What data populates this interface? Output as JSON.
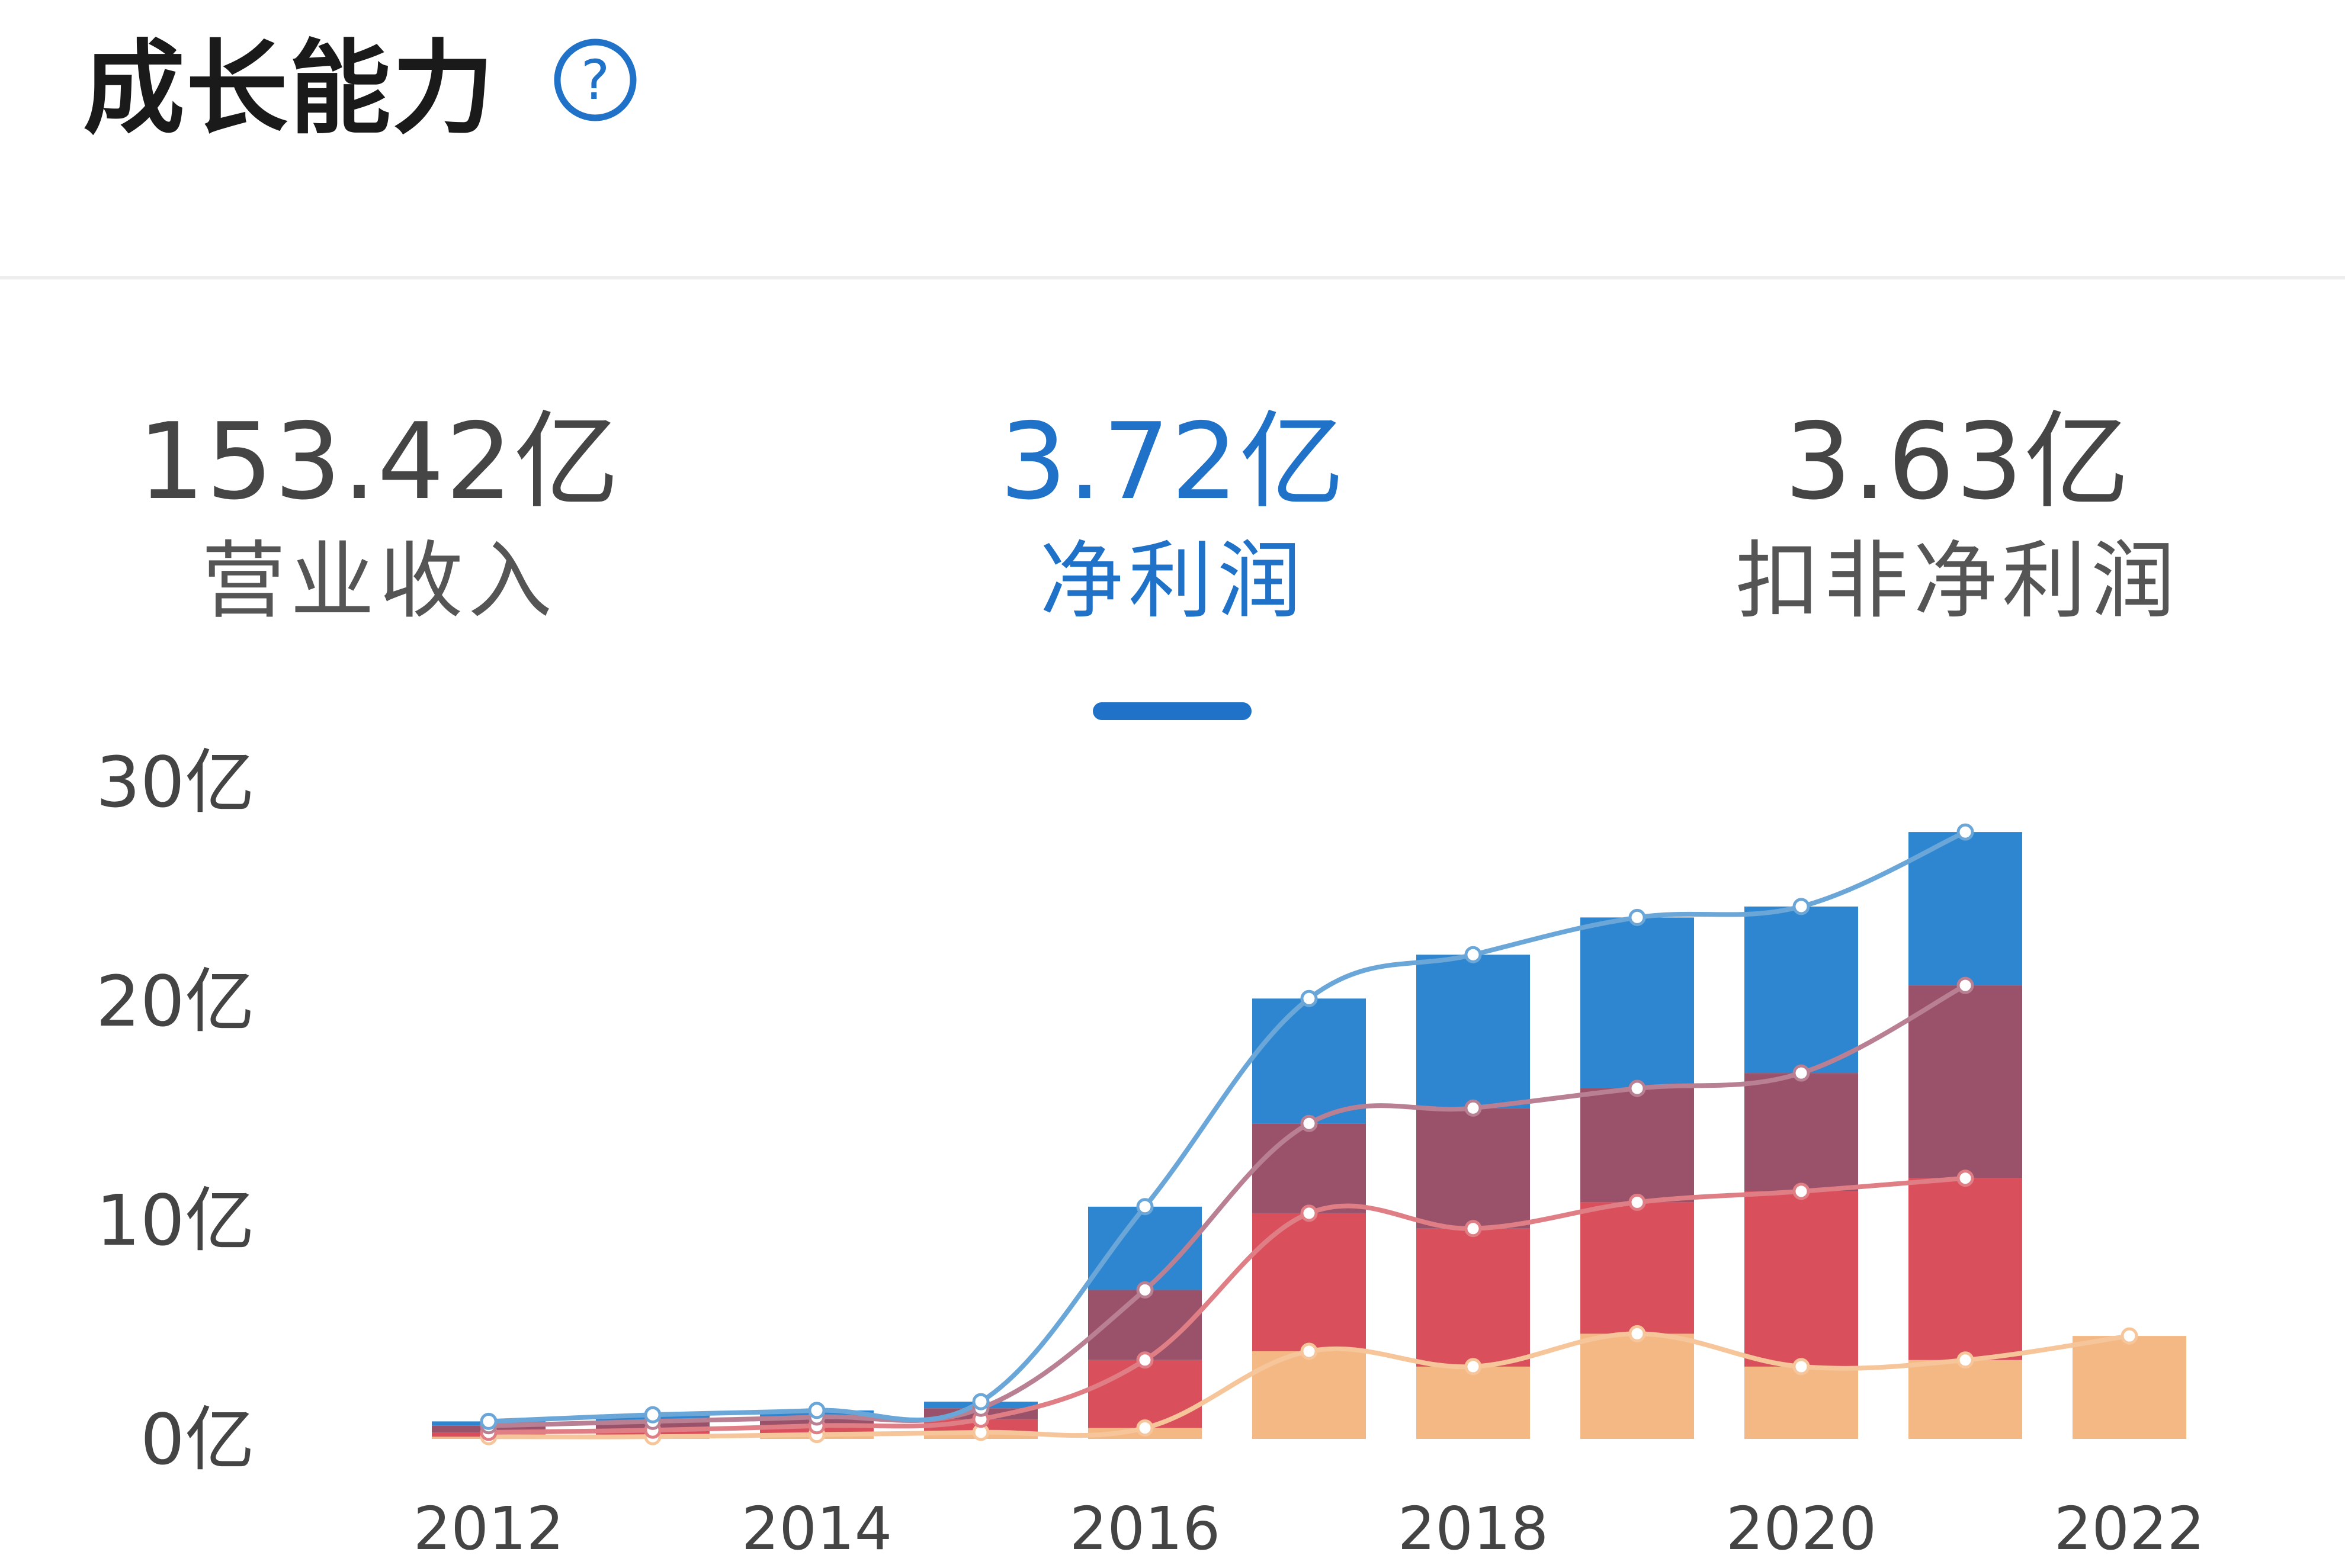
{
  "header": {
    "title": "成长能力",
    "help_icon": "help-circle-icon",
    "help_symbol": "?"
  },
  "metrics": [
    {
      "value": "153.42亿",
      "label": "营业收入",
      "active": false
    },
    {
      "value": "3.72亿",
      "label": "净利润",
      "active": true
    },
    {
      "value": "3.63亿",
      "label": "扣非净利润",
      "active": false
    }
  ],
  "colors": {
    "accent": "#1f72c8",
    "q1": "#f4b884",
    "q2": "#d94f5c",
    "q3": "#99526a",
    "q4": "#2d86cf",
    "line_q1": "#f6c59a",
    "line_q2": "#e07e86",
    "line_q3": "#b97f92",
    "line_q4": "#6aa7d8"
  },
  "chart_data": {
    "type": "bar",
    "stacked": true,
    "title": "",
    "xlabel": "",
    "ylabel": "",
    "ylim": [
      0,
      30
    ],
    "unit": "亿",
    "y_ticks": [
      "0亿",
      "10亿",
      "20亿",
      "30亿"
    ],
    "x_ticks": [
      "2012",
      "2014",
      "2016",
      "2018",
      "2020",
      "2022"
    ],
    "categories": [
      "2012",
      "2013",
      "2014",
      "2015",
      "2016",
      "2017",
      "2018",
      "2019",
      "2020",
      "2021",
      "2022"
    ],
    "series": [
      {
        "values": [
          0.1,
          0.1,
          0.2,
          0.3,
          0.5,
          4.0,
          3.3,
          4.8,
          3.3,
          3.6,
          4.7
        ]
      },
      {
        "values": [
          0.2,
          0.3,
          0.4,
          0.6,
          3.1,
          6.3,
          6.3,
          6.0,
          8.0,
          8.3,
          0
        ]
      },
      {
        "values": [
          0.3,
          0.4,
          0.4,
          0.5,
          3.2,
          4.1,
          5.5,
          5.2,
          5.4,
          8.8,
          0
        ]
      },
      {
        "values": [
          0.2,
          0.3,
          0.3,
          0.3,
          3.8,
          5.7,
          7.0,
          7.8,
          7.6,
          7.0,
          0
        ]
      }
    ],
    "grid": false,
    "legend": "none"
  }
}
